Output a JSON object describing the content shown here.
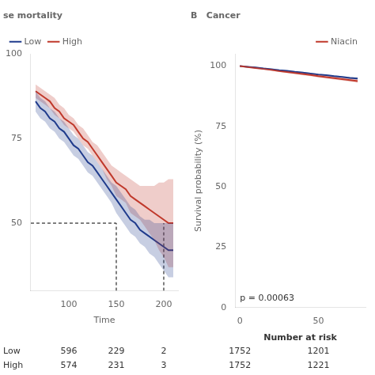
{
  "chart_data": [
    {
      "type": "line",
      "title": "se mortality",
      "x_label": "Time",
      "xlim": [
        60,
        215
      ],
      "ylim": [
        30,
        100
      ],
      "xticks": [
        100,
        150,
        200
      ],
      "yticks": [
        50,
        75,
        100
      ],
      "grid": false,
      "legend": "upper left",
      "x": [
        65,
        70,
        75,
        80,
        85,
        90,
        95,
        100,
        105,
        110,
        115,
        120,
        125,
        130,
        135,
        140,
        145,
        150,
        155,
        160,
        165,
        170,
        175,
        180,
        185,
        190,
        195,
        200,
        205,
        210
      ],
      "series": [
        {
          "name": "Low",
          "color": "#1F3B8C",
          "values": [
            86,
            84,
            83,
            81,
            80,
            78,
            77,
            75,
            73,
            72,
            70,
            68,
            67,
            65,
            63,
            61,
            59,
            57,
            55,
            53,
            51,
            50,
            48,
            47,
            46,
            45,
            44,
            43,
            42,
            42
          ],
          "ci_upper": [
            89,
            87,
            86,
            84,
            83,
            81,
            80,
            78,
            76,
            75,
            73,
            71,
            70,
            68,
            66,
            64,
            62,
            61,
            59,
            57,
            55,
            54,
            52,
            51,
            51,
            50,
            50,
            50,
            50,
            50
          ],
          "ci_lower": [
            83,
            81,
            80,
            78,
            77,
            75,
            74,
            72,
            70,
            69,
            67,
            65,
            64,
            62,
            60,
            58,
            56,
            53,
            51,
            49,
            47,
            46,
            44,
            43,
            41,
            40,
            38,
            36,
            34,
            34
          ]
        },
        {
          "name": "High",
          "color": "#C0392B",
          "values": [
            89,
            88,
            87,
            86,
            84,
            83,
            81,
            80,
            79,
            77,
            75,
            74,
            72,
            70,
            68,
            66,
            64,
            62,
            61,
            60,
            58,
            57,
            56,
            55,
            54,
            53,
            52,
            51,
            50,
            50
          ],
          "ci_upper": [
            91,
            90,
            89,
            88,
            87,
            85,
            84,
            82,
            81,
            79,
            78,
            76,
            74,
            73,
            71,
            69,
            67,
            66,
            65,
            64,
            63,
            62,
            61,
            61,
            61,
            61,
            62,
            62,
            63,
            63
          ],
          "ci_lower": [
            87,
            86,
            85,
            84,
            82,
            81,
            79,
            78,
            77,
            75,
            73,
            72,
            70,
            68,
            66,
            63,
            61,
            58,
            57,
            56,
            53,
            52,
            51,
            49,
            47,
            45,
            42,
            40,
            37,
            37
          ]
        }
      ],
      "dashed_line_y": 50,
      "dashed_line_x": [
        150,
        200
      ],
      "at_risk": {
        "times": [
          100,
          150,
          200
        ],
        "rows": [
          {
            "name": "Low",
            "values": [
              596,
              229,
              2
            ]
          },
          {
            "name": "High",
            "values": [
              574,
              231,
              3
            ]
          }
        ]
      }
    },
    {
      "type": "line",
      "panel_label": "B",
      "title": "Cancer",
      "y_label": "Survival probability (%)",
      "xlim": [
        -3,
        80
      ],
      "ylim": [
        0,
        105
      ],
      "xticks": [
        0,
        50
      ],
      "yticks": [
        0,
        25,
        50,
        75,
        100
      ],
      "grid": false,
      "legend": "upper right",
      "annotation": "p = 0.00063",
      "x": [
        0,
        5,
        10,
        15,
        20,
        25,
        30,
        35,
        40,
        45,
        50,
        55,
        60,
        65,
        70,
        75
      ],
      "series": [
        {
          "name": "Niacin",
          "color": "#C0392B",
          "values": [
            100,
            99.6,
            99.2,
            98.8,
            98.4,
            97.9,
            97.5,
            97.1,
            96.7,
            96.3,
            95.8,
            95.4,
            95.0,
            94.6,
            94.2,
            93.8
          ],
          "ci_upper": [
            100,
            99.8,
            99.5,
            99.1,
            98.7,
            98.3,
            97.9,
            97.5,
            97.2,
            96.8,
            96.4,
            96.0,
            95.6,
            95.2,
            94.8,
            94.5
          ],
          "ci_lower": [
            100,
            99.4,
            98.9,
            98.5,
            98.1,
            97.5,
            97.1,
            96.7,
            96.2,
            95.8,
            95.2,
            94.8,
            94.4,
            94.0,
            93.6,
            93.1
          ]
        },
        {
          "color": "#1F3B8C",
          "values": [
            100,
            99.7,
            99.4,
            99.0,
            98.7,
            98.3,
            98.0,
            97.6,
            97.3,
            96.9,
            96.5,
            96.2,
            95.8,
            95.5,
            95.1,
            94.8
          ],
          "ci_upper": [
            100,
            99.9,
            99.6,
            99.3,
            98.9,
            98.6,
            98.2,
            97.9,
            97.6,
            97.2,
            96.8,
            96.5,
            96.2,
            95.8,
            95.5,
            95.2
          ],
          "ci_lower": [
            100,
            99.5,
            99.2,
            98.7,
            98.4,
            98.0,
            97.7,
            97.3,
            97.0,
            96.6,
            96.2,
            95.9,
            95.4,
            95.2,
            94.7,
            94.4
          ]
        }
      ],
      "at_risk": {
        "title": "Number at risk",
        "times": [
          0,
          50
        ],
        "rows": [
          {
            "values": [
              1752,
              1201
            ]
          },
          {
            "values": [
              1752,
              1221
            ]
          }
        ]
      }
    }
  ]
}
